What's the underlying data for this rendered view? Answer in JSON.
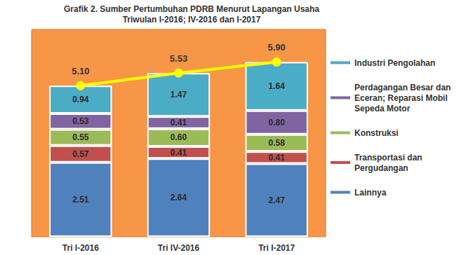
{
  "chart_data": {
    "type": "bar",
    "title": "Grafik 2. Sumber Pertumbuhan PDRB Menurut Lapangan Usaha",
    "subtitle": "Triwulan I-2016; IV-2016 dan I-2017",
    "categories": [
      "Tri I-2016",
      "Tri IV-2016",
      "Tri I-2017"
    ],
    "stacked": true,
    "data_labels": true,
    "tick_labels": "x",
    "grid": false,
    "legend": "right",
    "ylim": [
      0,
      7
    ],
    "series": [
      {
        "name": "Lainnya",
        "color": "#4f81bd",
        "values": [
          2.51,
          2.64,
          2.47
        ],
        "value_labels": [
          "2.51",
          "2.64",
          "2.47"
        ]
      },
      {
        "name": "Transportasi dan Pergudangan",
        "color": "#c0504d",
        "values": [
          0.57,
          0.41,
          0.41
        ],
        "value_labels": [
          "0.57",
          "0.41",
          "0.41"
        ]
      },
      {
        "name": "Konstruksi",
        "color": "#9bbb59",
        "values": [
          0.55,
          0.6,
          0.58
        ],
        "value_labels": [
          "0.55",
          "0.60",
          "0.58"
        ]
      },
      {
        "name": "Perdagangan Besar dan Eceran; Reparasi Mobil Sepeda Motor",
        "color": "#8064a2",
        "values": [
          0.53,
          0.41,
          0.8
        ],
        "value_labels": [
          "0.53",
          "0.41",
          "0.80"
        ]
      },
      {
        "name": "Industri Pengolahan",
        "color": "#4bacc6",
        "values": [
          0.94,
          1.47,
          1.64
        ],
        "value_labels": [
          "0.94",
          "1.47",
          "1.64"
        ]
      },
      {
        "type": "line",
        "color": "#ffff00",
        "marker": "circle",
        "values": [
          5.1,
          5.53,
          5.9
        ],
        "value_labels": [
          "5.10",
          "5.53",
          "5.90"
        ]
      }
    ]
  }
}
